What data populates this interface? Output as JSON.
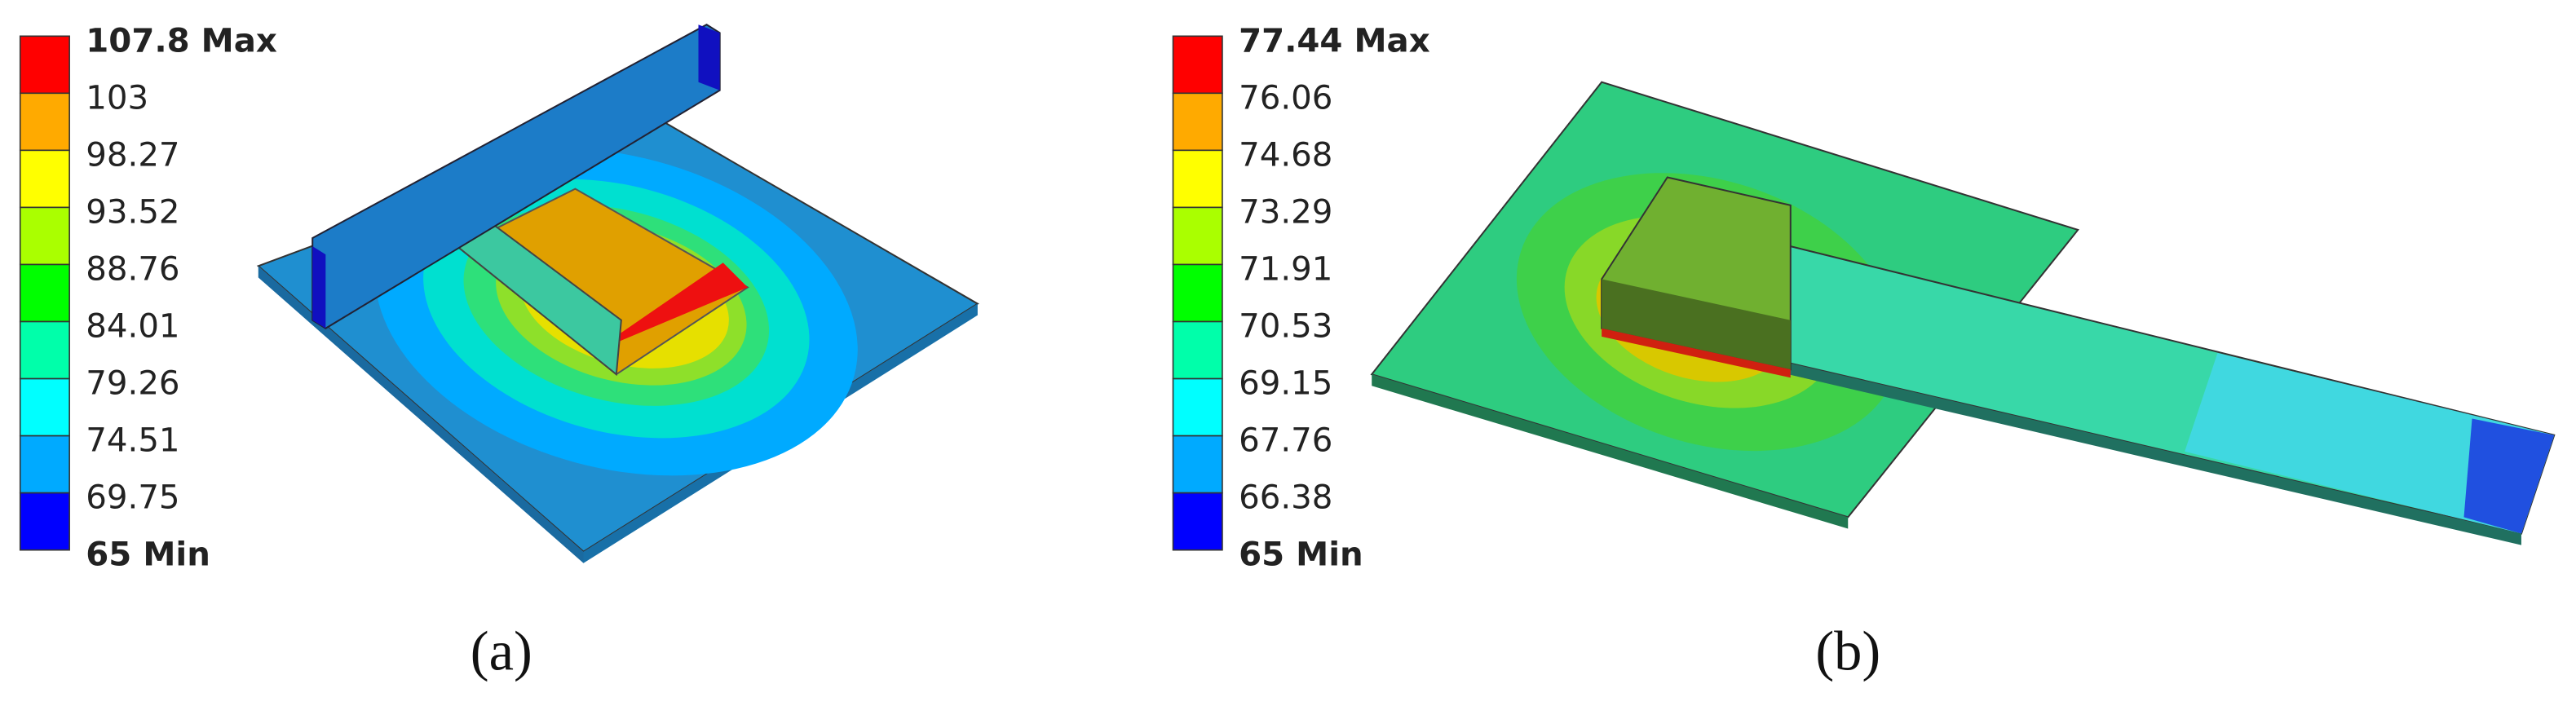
{
  "panels": [
    {
      "legend": {
        "labels": [
          "107.8 Max",
          "103",
          "98.27",
          "93.52",
          "88.76",
          "84.01",
          "79.26",
          "74.51",
          "69.75",
          "65 Min"
        ],
        "colors": [
          "#ff0000",
          "#ffaa00",
          "#ffff00",
          "#aaff00",
          "#00ff00",
          "#00ffaa",
          "#00ffff",
          "#00aaff",
          "#0000ff"
        ]
      },
      "caption": "(a)"
    },
    {
      "legend": {
        "labels": [
          "77.44 Max",
          "76.06",
          "74.68",
          "73.29",
          "71.91",
          "70.53",
          "69.15",
          "67.76",
          "66.38",
          "65 Min"
        ],
        "colors": [
          "#ff0000",
          "#ffaa00",
          "#ffff00",
          "#aaff00",
          "#00ff00",
          "#00ffaa",
          "#00ffff",
          "#00aaff",
          "#0000ff"
        ]
      },
      "caption": "(b)"
    }
  ]
}
